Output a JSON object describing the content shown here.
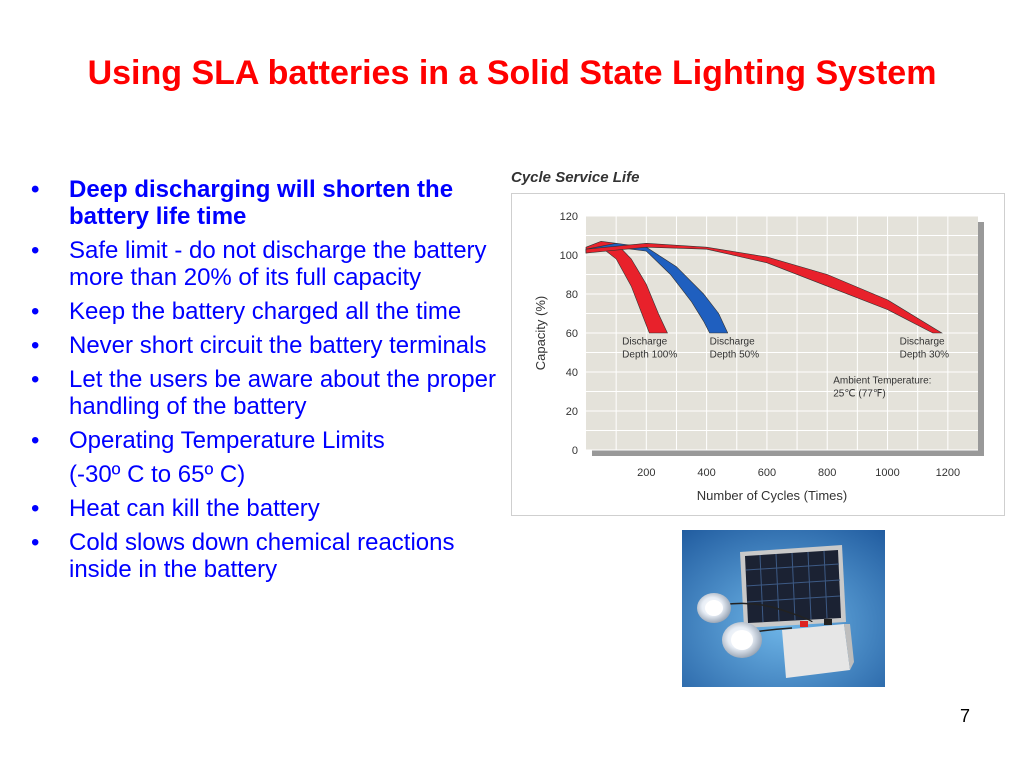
{
  "slide": {
    "title": "Using SLA batteries in a Solid State Lighting System",
    "page_number": "7"
  },
  "bullets": [
    {
      "text": "Deep discharging will shorten the battery life time",
      "bold": true,
      "marker": "•"
    },
    {
      "text": "Safe limit - do not discharge the battery more than 20% of its full capacity",
      "bold": false,
      "marker": "•"
    },
    {
      "text": "Keep the battery charged all the time",
      "bold": false,
      "marker": "•"
    },
    {
      "text": "Never short circuit the battery terminals",
      "bold": false,
      "marker": "•"
    },
    {
      "text": "Let the users be aware about the proper handling of the battery",
      "bold": false,
      "marker": "•"
    },
    {
      "text": "Operating Temperature Limits",
      "bold": false,
      "marker": "•"
    },
    {
      "text": "(-30º C to 65º C)",
      "bold": false,
      "marker": ""
    },
    {
      "text": "Heat can kill the battery",
      "bold": false,
      "marker": "•"
    },
    {
      "text": "Cold slows down chemical reactions inside in the battery",
      "bold": false,
      "marker": "•"
    }
  ],
  "chart_data": {
    "type": "area",
    "title": "Cycle Service Life",
    "xlabel": "Number of Cycles (Times)",
    "ylabel": "Capacity (%)",
    "xlim": [
      0,
      1300
    ],
    "ylim": [
      0,
      120
    ],
    "x_ticks": [
      200,
      400,
      600,
      800,
      1000,
      1200
    ],
    "y_ticks": [
      0,
      20,
      40,
      60,
      80,
      100,
      120
    ],
    "grid": true,
    "series": [
      {
        "name": "Discharge Depth 100%",
        "color": "#e8212b",
        "upper": [
          [
            0,
            104
          ],
          [
            50,
            107
          ],
          [
            100,
            106
          ],
          [
            150,
            98
          ],
          [
            200,
            85
          ],
          [
            240,
            70
          ],
          [
            270,
            60
          ]
        ],
        "lower": [
          [
            0,
            102
          ],
          [
            50,
            104
          ],
          [
            100,
            98
          ],
          [
            150,
            84
          ],
          [
            185,
            70
          ],
          [
            210,
            60
          ]
        ]
      },
      {
        "name": "Discharge Depth 50%",
        "color": "#1f5fbf",
        "upper": [
          [
            0,
            103
          ],
          [
            100,
            106
          ],
          [
            200,
            104
          ],
          [
            300,
            94
          ],
          [
            390,
            80
          ],
          [
            440,
            70
          ],
          [
            470,
            60
          ]
        ],
        "lower": [
          [
            0,
            101
          ],
          [
            100,
            104
          ],
          [
            200,
            102
          ],
          [
            280,
            90
          ],
          [
            350,
            76
          ],
          [
            390,
            66
          ],
          [
            410,
            60
          ]
        ]
      },
      {
        "name": "Discharge Depth 30%",
        "color": "#e8212b",
        "upper": [
          [
            0,
            103
          ],
          [
            200,
            106
          ],
          [
            400,
            104
          ],
          [
            600,
            99
          ],
          [
            800,
            90
          ],
          [
            1000,
            77
          ],
          [
            1180,
            60
          ]
        ],
        "lower": [
          [
            0,
            101
          ],
          [
            200,
            104
          ],
          [
            400,
            103
          ],
          [
            600,
            96
          ],
          [
            800,
            84
          ],
          [
            1000,
            72
          ],
          [
            1150,
            60
          ]
        ]
      }
    ],
    "annotations": [
      {
        "text_lines": [
          "Discharge",
          "Depth 100%"
        ],
        "x": 120,
        "y": 54
      },
      {
        "text_lines": [
          "Discharge",
          "Depth 50%"
        ],
        "x": 410,
        "y": 54
      },
      {
        "text_lines": [
          "Discharge",
          "Depth 30%"
        ],
        "x": 1040,
        "y": 54
      },
      {
        "text_lines": [
          "Ambient Temperature:",
          "25℃  (77℉)"
        ],
        "x": 820,
        "y": 34
      }
    ],
    "colors": {
      "plot_bg": "#e4e2da",
      "grid": "#ffffff",
      "shadow": "#999999"
    }
  },
  "photo": {
    "description_icon": "solar-panel-lamps-battery-icon"
  }
}
